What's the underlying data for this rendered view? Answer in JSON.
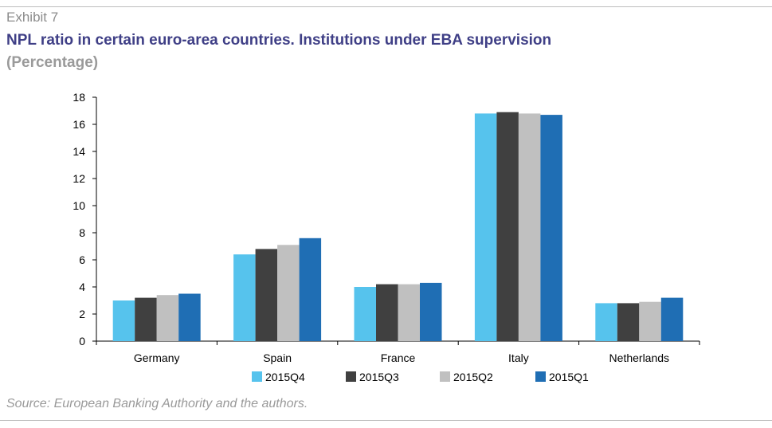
{
  "header": {
    "exhibit": "Exhibit 7",
    "title": "NPL ratio in certain euro-area countries. Institutions under EBA supervision",
    "subtitle": "(Percentage)"
  },
  "footer": {
    "source": "Source: European Banking Authority and the authors."
  },
  "chart_data": {
    "type": "bar",
    "categories": [
      "Germany",
      "Spain",
      "France",
      "Italy",
      "Netherlands"
    ],
    "series": [
      {
        "name": "2015Q4",
        "color": "#56c3ed",
        "values": [
          3.0,
          6.4,
          4.0,
          16.8,
          2.8
        ]
      },
      {
        "name": "2015Q3",
        "color": "#404040",
        "values": [
          3.2,
          6.8,
          4.2,
          16.9,
          2.8
        ]
      },
      {
        "name": "2015Q2",
        "color": "#c0c0c0",
        "values": [
          3.4,
          7.1,
          4.2,
          16.8,
          2.9
        ]
      },
      {
        "name": "2015Q1",
        "color": "#1f6eb4",
        "values": [
          3.5,
          7.6,
          4.3,
          16.7,
          3.2
        ]
      }
    ],
    "ylim": [
      0,
      18
    ],
    "yticks": [
      0,
      2,
      4,
      6,
      8,
      10,
      12,
      14,
      16,
      18
    ],
    "grid": false,
    "legend": "bottom"
  }
}
